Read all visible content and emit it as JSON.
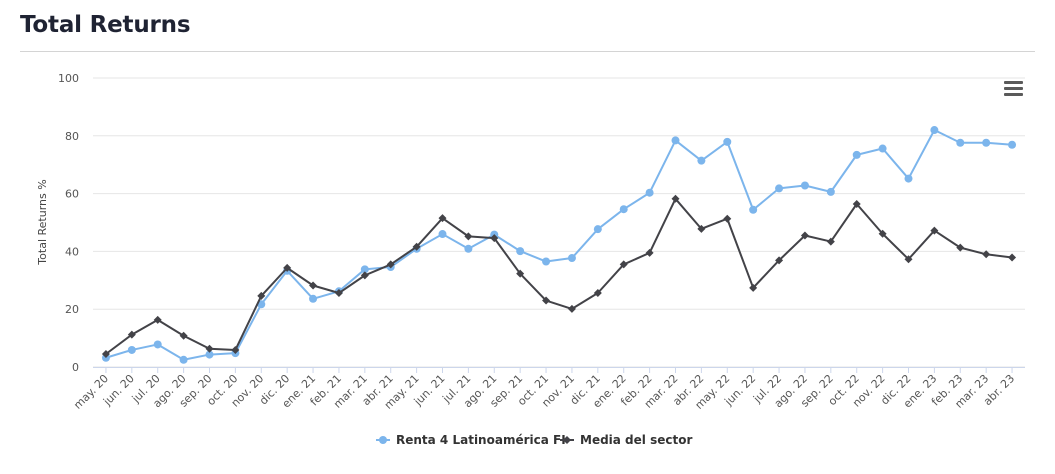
{
  "header": {
    "title": "Total Returns"
  },
  "menu": {
    "icon": "hamburger-menu-icon"
  },
  "colors": {
    "fund": "#7cb5ec",
    "sector": "#434348",
    "grid": "#e6e6e6"
  },
  "chart_data": {
    "type": "line",
    "title": "Total Returns",
    "xlabel": "",
    "ylabel": "Total Returns %",
    "ylim": [
      0,
      100
    ],
    "yticks": [
      0,
      20,
      40,
      60,
      80,
      100
    ],
    "grid": true,
    "legend_position": "bottom-center",
    "categories": [
      "may. 20",
      "jun. 20",
      "jul. 20",
      "ago. 20",
      "sep. 20",
      "oct. 20",
      "nov. 20",
      "dic. 20",
      "ene. 21",
      "feb. 21",
      "mar. 21",
      "abr. 21",
      "may. 21",
      "jun. 21",
      "jul. 21",
      "ago. 21",
      "sep. 21",
      "oct. 21",
      "nov. 21",
      "dic. 21",
      "ene. 22",
      "feb. 22",
      "mar. 22",
      "abr. 22",
      "may. 22",
      "jun. 22",
      "jul. 22",
      "ago. 22",
      "sep. 22",
      "oct. 22",
      "nov. 22",
      "dic. 22",
      "ene. 23",
      "feb. 23",
      "mar. 23",
      "abr. 23"
    ],
    "series": [
      {
        "name": "Renta 4 Latinoamérica FI",
        "marker": "circle",
        "color": "#7cb5ec",
        "values": [
          3.2,
          5.9,
          7.8,
          2.5,
          4.3,
          4.8,
          21.7,
          33.3,
          23.6,
          26.2,
          33.8,
          34.6,
          40.9,
          46.0,
          40.9,
          45.8,
          40.1,
          36.5,
          37.7,
          47.7,
          54.6,
          60.3,
          78.4,
          71.4,
          77.9,
          54.4,
          61.8,
          62.8,
          60.6,
          73.4,
          75.6,
          65.2,
          82.0,
          77.6,
          77.6,
          76.9
        ]
      },
      {
        "name": "Media del sector",
        "marker": "diamond",
        "color": "#434348",
        "values": [
          4.5,
          11.2,
          16.3,
          10.8,
          6.3,
          5.9,
          24.6,
          34.3,
          28.2,
          25.6,
          31.7,
          35.5,
          41.6,
          51.5,
          45.2,
          44.6,
          32.3,
          23.0,
          20.1,
          25.6,
          35.5,
          39.5,
          58.2,
          47.8,
          51.3,
          27.4,
          36.9,
          45.5,
          43.4,
          56.4,
          46.1,
          37.3,
          47.2,
          41.3,
          39.0,
          37.9
        ]
      }
    ]
  }
}
